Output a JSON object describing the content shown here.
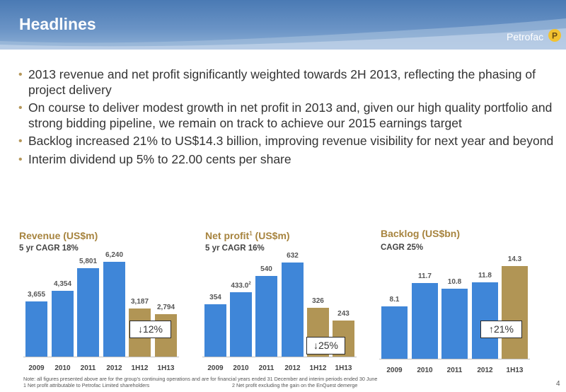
{
  "header": {
    "title": "Headlines",
    "logo_text": "Petrofac",
    "logo_mark": "P"
  },
  "bullets": [
    "2013 revenue and net profit significantly weighted towards 2H 2013, reflecting the phasing of project delivery",
    "On course to deliver modest growth in net profit in 2013 and, given our high quality portfolio and strong bidding pipeline, we remain on track to achieve our 2015 earnings target",
    "Backlog increased 21% to US$14.3 billion, improving revenue visibility for next year and beyond",
    "Interim dividend up 5% to 22.00 cents per share"
  ],
  "chart_data": [
    {
      "type": "bar",
      "title": "Revenue (US$m)",
      "subtitle": "5 yr CAGR 18%",
      "categories": [
        "2009",
        "2010",
        "2011",
        "2012",
        "1H12",
        "1H13"
      ],
      "values": [
        3655,
        4354,
        5801,
        6240,
        3187,
        2794
      ],
      "labels": [
        "3,655",
        "4,354",
        "5,801",
        "6,240",
        "3,187",
        "2,794"
      ],
      "colors": [
        "#3f86d8",
        "#3f86d8",
        "#3f86d8",
        "#3f86d8",
        "#b19555",
        "#b19555"
      ],
      "callout": "↓12%"
    },
    {
      "type": "bar",
      "title": "Net profit",
      "title_sup": "1",
      "title_suffix": " (US$m)",
      "subtitle": "5 yr CAGR 16%",
      "categories": [
        "2009",
        "2010",
        "2011",
        "2012",
        "1H12",
        "1H13"
      ],
      "values": [
        354,
        433.0,
        540,
        632,
        326,
        243
      ],
      "labels": [
        "354",
        "433.0",
        "540",
        "632",
        "326",
        "243"
      ],
      "label_sups": [
        "",
        "2",
        "",
        "",
        "",
        ""
      ],
      "colors": [
        "#3f86d8",
        "#3f86d8",
        "#3f86d8",
        "#3f86d8",
        "#b19555",
        "#b19555"
      ],
      "callout": "↓25%"
    },
    {
      "type": "bar",
      "title": "Backlog (US$bn)",
      "subtitle": "CAGR 25%",
      "categories": [
        "2009",
        "2010",
        "2011",
        "2012",
        "1H13"
      ],
      "values": [
        8.1,
        11.7,
        10.8,
        11.8,
        14.3
      ],
      "labels": [
        "8.1",
        "11.7",
        "10.8",
        "11.8",
        "14.3"
      ],
      "colors": [
        "#3f86d8",
        "#3f86d8",
        "#3f86d8",
        "#3f86d8",
        "#b19555"
      ],
      "callout": "↑21%"
    }
  ],
  "footnotes": {
    "note": "Note: all figures presented above are for the group's continuing operations and are for financial years ended 31 December and interim periods ended 30 June",
    "note1": "1 Net profit attributable to Petrofac Limited shareholders",
    "note2": "2 Net profit excluding the gain on the EnQuest demerge"
  },
  "page_number": "4"
}
